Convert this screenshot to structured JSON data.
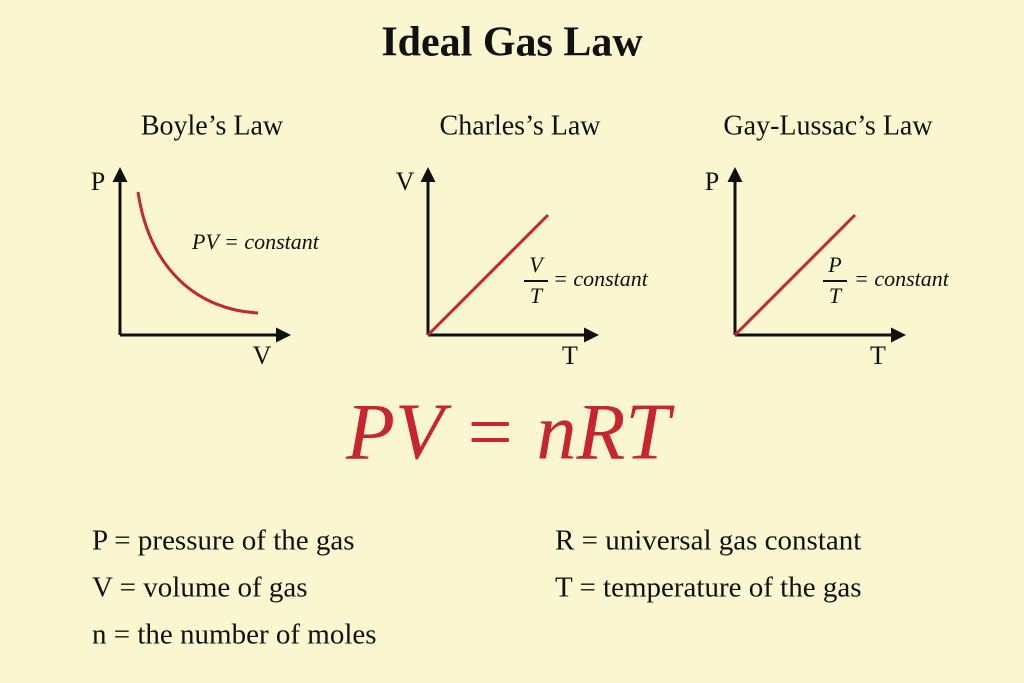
{
  "title": "Ideal Gas Law",
  "panels": [
    {
      "title": "Boyle’s Law",
      "y_axis": "P",
      "x_axis": "V",
      "equation": "PV = constant"
    },
    {
      "title": "Charles’s Law",
      "y_axis": "V",
      "x_axis": "T",
      "numerator": "V",
      "denominator": "T",
      "equation": "= constant"
    },
    {
      "title": "Gay-Lussac’s Law",
      "y_axis": "P",
      "x_axis": "T",
      "numerator": "P",
      "denominator": "T",
      "equation": "= constant"
    }
  ],
  "formula": "PV = nRT",
  "definitions": [
    "P = pressure of the gas",
    "V = volume of gas",
    "n = the number of moles",
    "R = universal gas constant",
    "T = temperature of the gas"
  ]
}
